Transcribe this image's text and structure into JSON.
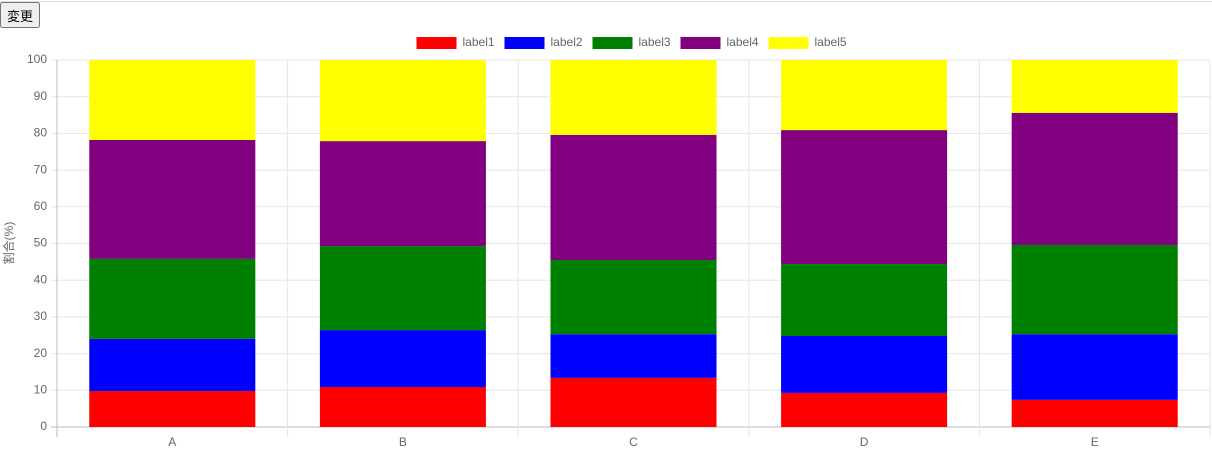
{
  "button": "変更",
  "chart_data": {
    "type": "stacked_bar",
    "y_label": "割合(%)",
    "categories": [
      "A",
      "B",
      "C",
      "D",
      "E"
    ],
    "series": [
      {
        "name": "label1",
        "color": "#ff0000",
        "values": [
          9.8,
          10.9,
          13.4,
          9.3,
          7.4
        ]
      },
      {
        "name": "label2",
        "color": "#0000ff",
        "values": [
          14.2,
          15.5,
          11.9,
          15.5,
          17.9
        ]
      },
      {
        "name": "label3",
        "color": "#008000",
        "values": [
          21.8,
          22.9,
          20.2,
          19.6,
          24.3
        ]
      },
      {
        "name": "label4",
        "color": "#800080",
        "values": [
          32.4,
          28.6,
          34.1,
          36.5,
          36.0
        ]
      },
      {
        "name": "label5",
        "color": "#ffff00",
        "values": [
          21.8,
          22.1,
          20.4,
          19.1,
          14.4
        ]
      }
    ],
    "ylim": [
      0,
      100
    ],
    "yticks": [
      0,
      10,
      20,
      30,
      40,
      50,
      60,
      70,
      80,
      90,
      100
    ],
    "grid": true,
    "legend": "top"
  }
}
